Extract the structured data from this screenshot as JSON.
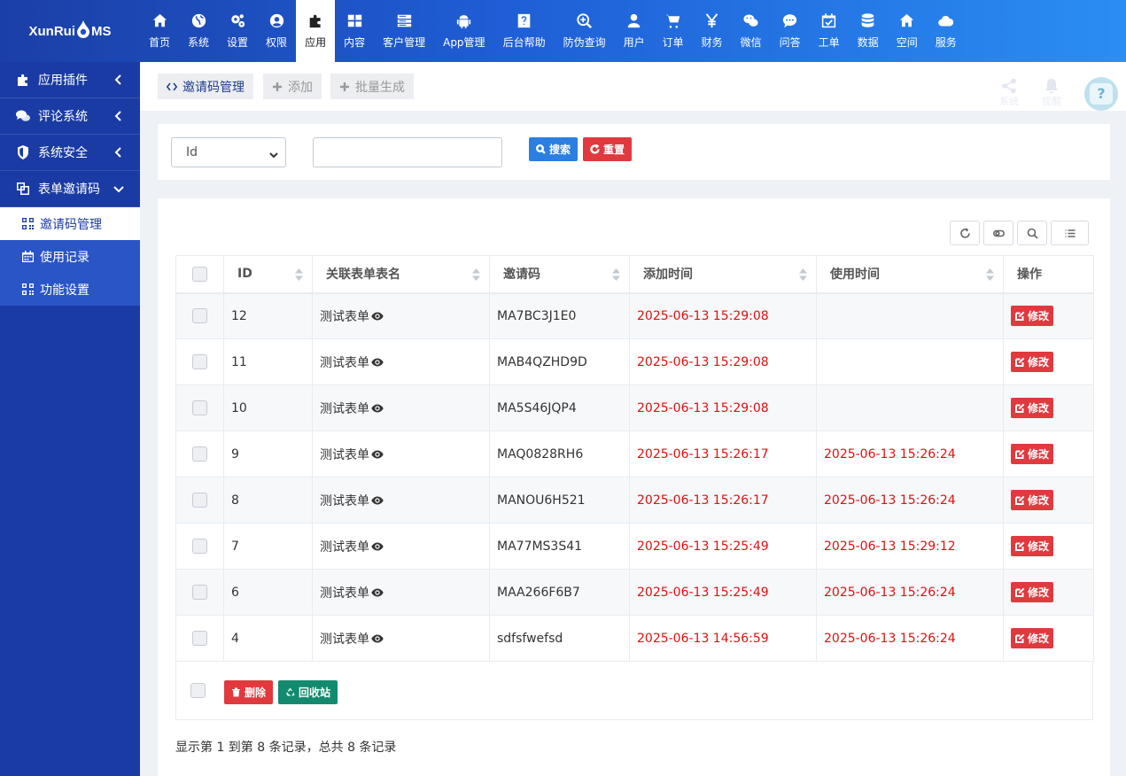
{
  "logo": {
    "left": "XunRui",
    "right": "MS"
  },
  "nav": [
    {
      "label": "首页",
      "icon": "home-icon"
    },
    {
      "label": "系统",
      "icon": "globe-icon"
    },
    {
      "label": "设置",
      "icon": "gears-icon"
    },
    {
      "label": "权限",
      "icon": "user-circle-icon"
    },
    {
      "label": "应用",
      "icon": "puzzle-icon",
      "active": true
    },
    {
      "label": "内容",
      "icon": "grid-icon"
    },
    {
      "label": "客户管理",
      "icon": "server-icon"
    },
    {
      "label": "App管理",
      "icon": "android-icon"
    },
    {
      "label": "后台帮助",
      "icon": "question-icon"
    },
    {
      "label": "防伪查询",
      "icon": "search-plus-icon"
    },
    {
      "label": "用户",
      "icon": "user-icon"
    },
    {
      "label": "订单",
      "icon": "cart-icon"
    },
    {
      "label": "财务",
      "icon": "yen-icon"
    },
    {
      "label": "微信",
      "icon": "wechat-icon"
    },
    {
      "label": "问答",
      "icon": "chat-icon"
    },
    {
      "label": "工单",
      "icon": "calendar-check-icon"
    },
    {
      "label": "数据",
      "icon": "database-icon"
    },
    {
      "label": "空间",
      "icon": "home-icon"
    },
    {
      "label": "服务",
      "icon": "cloud-icon"
    }
  ],
  "sidebar": {
    "groups": [
      {
        "label": "应用插件",
        "icon": "puzzle-icon"
      },
      {
        "label": "评论系统",
        "icon": "comments-icon"
      },
      {
        "label": "系统安全",
        "icon": "shield-icon"
      },
      {
        "label": "表单邀请码",
        "icon": "copy-icon"
      }
    ],
    "sub_items": [
      {
        "label": "邀请码管理",
        "icon": "qrcode-icon",
        "active": true
      },
      {
        "label": "使用记录",
        "icon": "calendar-icon"
      },
      {
        "label": "功能设置",
        "icon": "qrcode-icon"
      }
    ]
  },
  "toolbar": {
    "manage_label": "邀请码管理",
    "add_label": "添加",
    "batch_label": "批量生成",
    "share_label": "系统",
    "bell_label": "提醒",
    "avatar_label": "?"
  },
  "search": {
    "field_selected": "Id",
    "input_value": "",
    "search_label": "搜索",
    "reset_label": "重置"
  },
  "table": {
    "headers": [
      "ID",
      "关联表单表名",
      "邀请码",
      "添加时间",
      "使用时间",
      "操作"
    ],
    "edit_label": "修改",
    "rows": [
      {
        "id": "12",
        "form": "测试表单",
        "code": "MA7BC3J1E0",
        "added": "2025-06-13 15:29:08",
        "used": ""
      },
      {
        "id": "11",
        "form": "测试表单",
        "code": "MAB4QZHD9D",
        "added": "2025-06-13 15:29:08",
        "used": ""
      },
      {
        "id": "10",
        "form": "测试表单",
        "code": "MA5S46JQP4",
        "added": "2025-06-13 15:29:08",
        "used": ""
      },
      {
        "id": "9",
        "form": "测试表单",
        "code": "MAQ0828RH6",
        "added": "2025-06-13 15:26:17",
        "used": "2025-06-13 15:26:24"
      },
      {
        "id": "8",
        "form": "测试表单",
        "code": "MANOU6H521",
        "added": "2025-06-13 15:26:17",
        "used": "2025-06-13 15:26:24"
      },
      {
        "id": "7",
        "form": "测试表单",
        "code": "MA77MS3S41",
        "added": "2025-06-13 15:25:49",
        "used": "2025-06-13 15:29:12"
      },
      {
        "id": "6",
        "form": "测试表单",
        "code": "MAA266F6B7",
        "added": "2025-06-13 15:25:49",
        "used": "2025-06-13 15:26:24"
      },
      {
        "id": "4",
        "form": "测试表单",
        "code": "sdfsfwefsd",
        "added": "2025-06-13 14:56:59",
        "used": "2025-06-13 15:26:24"
      }
    ]
  },
  "footer": {
    "delete_label": "删除",
    "recycle_label": "回收站",
    "summary": "显示第 1 到第 8 条记录，总共 8 条记录"
  },
  "colors": {
    "accent_blue": "#1b3ba4",
    "danger": "#e0393e",
    "date_red": "#e01010",
    "recycle_green": "#138a6d"
  }
}
